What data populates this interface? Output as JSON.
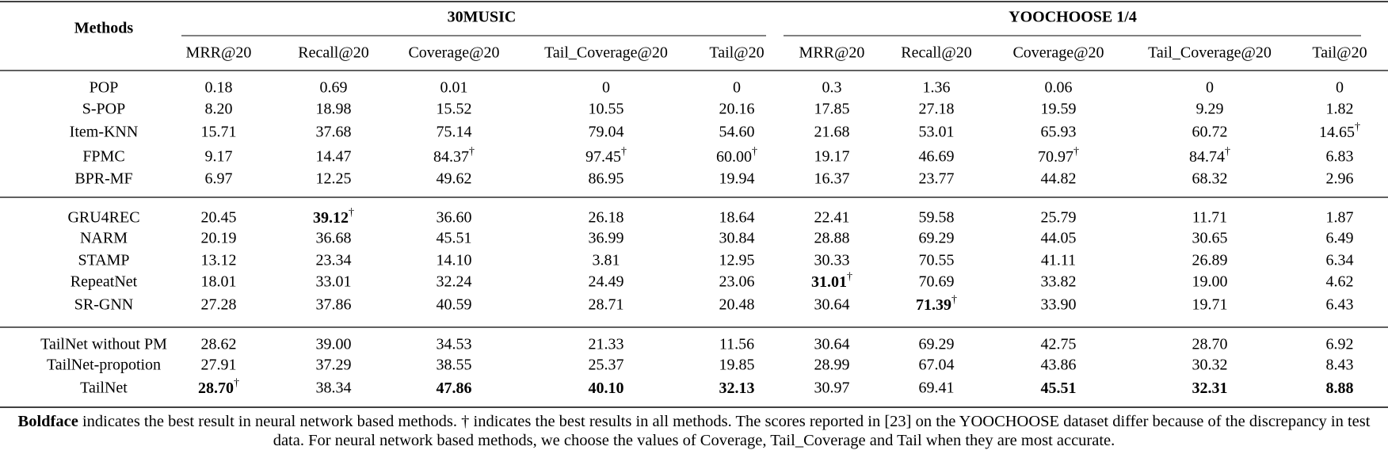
{
  "table": {
    "header": {
      "methods": "Methods",
      "groups": [
        "30MUSIC",
        "YOOCHOOSE 1/4"
      ],
      "metrics": [
        "MRR@20",
        "Recall@20",
        "Coverage@20",
        "Tail_Coverage@20",
        "Tail@20",
        "MRR@20",
        "Recall@20",
        "Coverage@20",
        "Tail_Coverage@20",
        "Tail@20"
      ]
    },
    "sections": [
      [
        {
          "method": "POP",
          "cells": [
            "0.18",
            "0.69",
            "0.01",
            "0",
            "0",
            "0.3",
            "1.36",
            "0.06",
            "0",
            "0"
          ]
        },
        {
          "method": "S-POP",
          "cells": [
            "8.20",
            "18.98",
            "15.52",
            "10.55",
            "20.16",
            "17.85",
            "27.18",
            "19.59",
            "9.29",
            "1.82"
          ]
        },
        {
          "method": "Item-KNN",
          "cells": [
            "15.71",
            "37.68",
            "75.14",
            "79.04",
            "54.60",
            "21.68",
            "53.01",
            "65.93",
            "60.72",
            {
              "text": "14.65",
              "sup": "†"
            }
          ]
        },
        {
          "method": "FPMC",
          "cells": [
            "9.17",
            "14.47",
            {
              "text": "84.37",
              "sup": "†"
            },
            {
              "text": "97.45",
              "sup": "†"
            },
            {
              "text": "60.00",
              "sup": "†"
            },
            "19.17",
            "46.69",
            {
              "text": "70.97",
              "sup": "†"
            },
            {
              "text": "84.74",
              "sup": "†"
            },
            "6.83"
          ]
        },
        {
          "method": "BPR-MF",
          "cells": [
            "6.97",
            "12.25",
            "49.62",
            "86.95",
            "19.94",
            "16.37",
            "23.77",
            "44.82",
            "68.32",
            "2.96"
          ]
        }
      ],
      [
        {
          "method": "GRU4REC",
          "cells": [
            "20.45",
            {
              "text": "39.12",
              "bold": true,
              "sup": "†"
            },
            "36.60",
            "26.18",
            "18.64",
            "22.41",
            "59.58",
            "25.79",
            "11.71",
            "1.87"
          ]
        },
        {
          "method": "NARM",
          "cells": [
            "20.19",
            "36.68",
            "45.51",
            "36.99",
            "30.84",
            "28.88",
            "69.29",
            "44.05",
            "30.65",
            "6.49"
          ]
        },
        {
          "method": "STAMP",
          "cells": [
            "13.12",
            "23.34",
            "14.10",
            "3.81",
            "12.95",
            "30.33",
            "70.55",
            "41.11",
            "26.89",
            "6.34"
          ]
        },
        {
          "method": "RepeatNet",
          "cells": [
            "18.01",
            "33.01",
            "32.24",
            "24.49",
            "23.06",
            {
              "text": "31.01",
              "bold": true,
              "sup": "†"
            },
            "70.69",
            "33.82",
            "19.00",
            "4.62"
          ]
        },
        {
          "method": "SR-GNN",
          "cells": [
            "27.28",
            "37.86",
            "40.59",
            "28.71",
            "20.48",
            "30.64",
            {
              "text": "71.39",
              "bold": true,
              "sup": "†"
            },
            "33.90",
            "19.71",
            "6.43"
          ]
        }
      ],
      [
        {
          "method": "TailNet without PM",
          "cells": [
            "28.62",
            "39.00",
            "34.53",
            "21.33",
            "11.56",
            "30.64",
            "69.29",
            "42.75",
            "28.70",
            "6.92"
          ]
        },
        {
          "method": "TailNet-propotion",
          "cells": [
            "27.91",
            "37.29",
            "38.55",
            "25.37",
            "19.85",
            "28.99",
            "67.04",
            "43.86",
            "30.32",
            "8.43"
          ]
        },
        {
          "method": "TailNet",
          "cells": [
            {
              "text": "28.70",
              "bold": true,
              "sup": "†"
            },
            "38.34",
            {
              "text": "47.86",
              "bold": true
            },
            {
              "text": "40.10",
              "bold": true
            },
            {
              "text": "32.13",
              "bold": true
            },
            "30.97",
            "69.41",
            {
              "text": "45.51",
              "bold": true
            },
            {
              "text": "32.31",
              "bold": true
            },
            {
              "text": "8.88",
              "bold": true
            }
          ]
        }
      ]
    ],
    "caption": {
      "lead": "Boldface",
      "text": " indicates the best result in neural network based methods. † indicates the best results in all methods. The scores reported in [23] on the YOOCHOOSE dataset differ because of the discrepancy in test data. For neural network based methods, we choose the values of Coverage, Tail_Coverage and Tail when they are most accurate."
    }
  }
}
